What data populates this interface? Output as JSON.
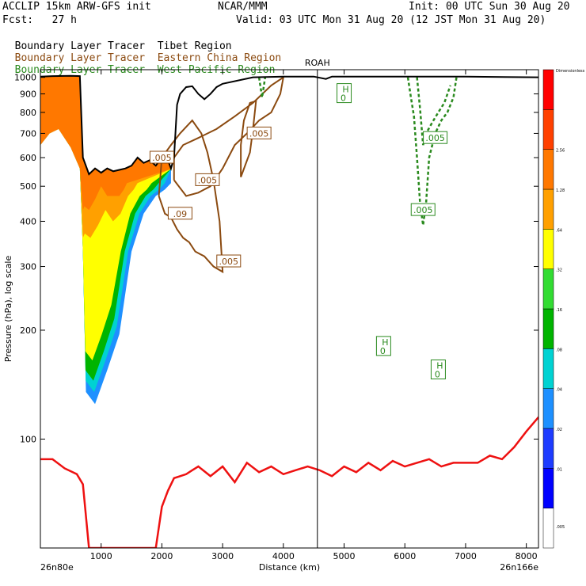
{
  "header": {
    "line1_left": "ACCLIP 15km ARW-GFS init",
    "line1_mid": "NCAR/MMM",
    "line1_right": "Init: 00 UTC Sun 30 Aug 20",
    "line2_left": "Fcst:   27 h",
    "line2_right": "Valid: 03 UTC Mon 31 Aug 20 (12 JST Mon 31 Aug 20)"
  },
  "legend_lines": [
    {
      "prefix": "Boundary Layer Tracer",
      "region": "Tibet Region",
      "color": "#000000"
    },
    {
      "prefix": "Boundary Layer Tracer",
      "region": "Eastern China Region",
      "color": "#8b4a10"
    },
    {
      "prefix": "Boundary Layer Tracer",
      "region": "West Pacific Region",
      "color": "#2a8a1e"
    }
  ],
  "chart_data": {
    "type": "area",
    "ylabel": "Pressure (hPa), log scale",
    "xlabel": "Distance (km)",
    "x_left_label": "26n80e",
    "x_right_label": "26n166e",
    "xlim": [
      0,
      8200
    ],
    "ylim_hpa": [
      1050,
      50
    ],
    "y_scale": "log",
    "x_ticks": [
      "1000",
      "2000",
      "3000",
      "4000",
      "5000",
      "6000",
      "7000",
      "8000"
    ],
    "y_ticks": [
      "100",
      "200",
      "300",
      "400",
      "500",
      "600",
      "700",
      "800",
      "900",
      "1000"
    ],
    "vertical_marker": {
      "label": "ROAH",
      "x": 4560
    },
    "colorbar_labels": [
      ".005",
      ".01",
      ".02",
      ".04",
      ".08",
      ".16",
      ".32",
      ".64",
      "1.28",
      "2.56",
      "Dimensionless"
    ],
    "colorbar_colors": [
      "#ffffff",
      "#0000ff",
      "#1e3cff",
      "#1e90ff",
      "#00d2d2",
      "#00b400",
      "#32dc32",
      "#ffff00",
      "#ffa000",
      "#ff7800",
      "#ff4000",
      "#ff0000"
    ],
    "series": [
      {
        "name": "Tibet Region",
        "color": "#000000",
        "terrain_hpa": [
          [
            0,
            1005
          ],
          [
            200,
            1008
          ],
          [
            500,
            1010
          ],
          [
            650,
            1008
          ],
          [
            700,
            600
          ],
          [
            800,
            540
          ],
          [
            900,
            560
          ],
          [
            1000,
            545
          ],
          [
            1100,
            560
          ],
          [
            1200,
            550
          ],
          [
            1300,
            555
          ],
          [
            1400,
            560
          ],
          [
            1500,
            570
          ],
          [
            1600,
            600
          ],
          [
            1700,
            580
          ],
          [
            1800,
            590
          ],
          [
            1900,
            570
          ],
          [
            2000,
            600
          ],
          [
            2100,
            590
          ],
          [
            2150,
            560
          ],
          [
            2200,
            600
          ],
          [
            2250,
            840
          ],
          [
            2300,
            900
          ],
          [
            2400,
            940
          ],
          [
            2500,
            945
          ],
          [
            2600,
            900
          ],
          [
            2700,
            870
          ],
          [
            2800,
            900
          ],
          [
            2900,
            940
          ],
          [
            3000,
            960
          ],
          [
            3500,
            1000
          ],
          [
            4000,
            1005
          ],
          [
            4500,
            1005
          ],
          [
            4700,
            990
          ],
          [
            4800,
            1005
          ],
          [
            6000,
            1005
          ],
          [
            7000,
            1005
          ],
          [
            8200,
            1000
          ]
        ],
        "shaded_tracer_range": [
          0.005,
          2.56
        ],
        "peak_tracer_level_hpa": 125
      },
      {
        "name": "Eastern China Region",
        "color": "#8b4a10",
        "contour_labels": [
          ".005",
          ".005",
          ".005",
          ".005",
          ".09"
        ],
        "core_range_km": [
          1900,
          4000
        ],
        "top_hpa": 280
      },
      {
        "name": "West Pacific Region",
        "color": "#2a8a1e",
        "contour_labels": [
          ".005",
          ".005"
        ],
        "core_range_km": [
          5900,
          6900
        ],
        "top_hpa": 380
      },
      {
        "name": "tropopause line",
        "color": "#ee1111",
        "x_km": [
          0,
          200,
          400,
          600,
          700,
          800,
          1900,
          2000,
          2100,
          2200,
          2300,
          2400,
          2500,
          2600,
          2800,
          3000,
          3200,
          3400,
          3600,
          3800,
          4000,
          4200,
          4400,
          4600,
          4800,
          5000,
          5200,
          5400,
          5600,
          5800,
          6000,
          6200,
          6400,
          6600,
          6800,
          7000,
          7200,
          7400,
          7600,
          7800,
          8000,
          8200
        ],
        "y_hpa": [
          88,
          88,
          83,
          80,
          75,
          50,
          50,
          65,
          72,
          78,
          79,
          80,
          82,
          84,
          79,
          84,
          76,
          86,
          81,
          84,
          80,
          82,
          84,
          82,
          79,
          84,
          81,
          86,
          82,
          87,
          84,
          86,
          88,
          84,
          86,
          86,
          86,
          90,
          88,
          95,
          105,
          115
        ]
      }
    ],
    "high_markers": [
      {
        "label": "H",
        "value": "0",
        "x": 5650,
        "y_hpa": 180
      },
      {
        "label": "H",
        "value": "0",
        "x": 6550,
        "y_hpa": 155
      },
      {
        "label": "H",
        "value": "0",
        "x": 5000,
        "y_hpa": 900
      }
    ]
  }
}
